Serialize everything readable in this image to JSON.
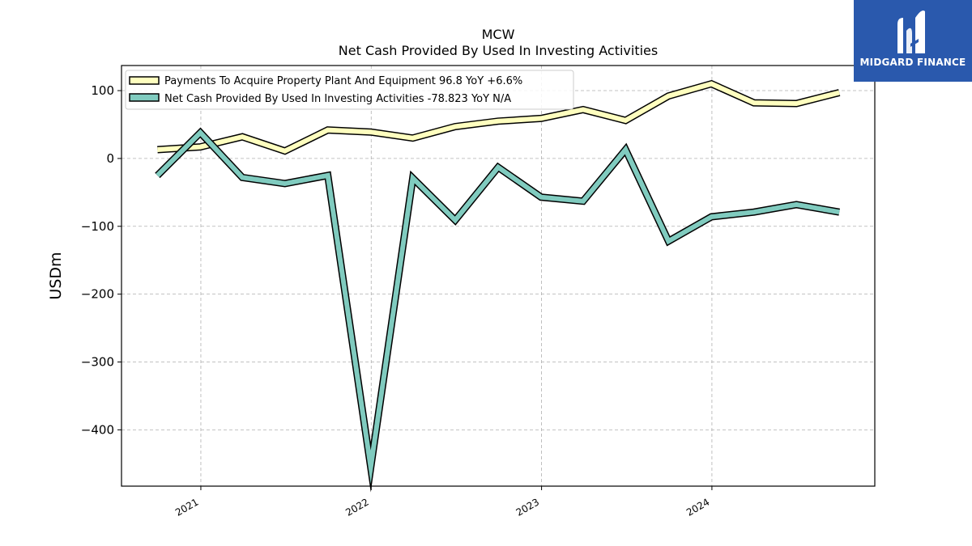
{
  "chart_data": {
    "type": "line",
    "title": "MCW",
    "subtitle": "Net Cash Provided By Used In Investing Activities",
    "ylabel": "USDm",
    "xlabel": "",
    "ylim": [
      -483,
      137
    ],
    "xlim": [
      "2020-07-15",
      "2024-12-15"
    ],
    "yticks": [
      100,
      0,
      -100,
      -200,
      -300,
      -400
    ],
    "ytick_labels": [
      "100",
      "0",
      "−100",
      "−200",
      "−300",
      "−400"
    ],
    "xticks": [
      "2021-01-01",
      "2022-01-01",
      "2023-01-01",
      "2024-01-01"
    ],
    "xtick_labels": [
      "2021",
      "2022",
      "2023",
      "2024"
    ],
    "grid": true,
    "legend_position": "top-left",
    "x": [
      "2020-09-30",
      "2020-12-31",
      "2021-03-31",
      "2021-06-30",
      "2021-09-30",
      "2021-12-31",
      "2022-03-31",
      "2022-06-30",
      "2022-09-30",
      "2022-12-31",
      "2023-03-31",
      "2023-06-30",
      "2023-09-30",
      "2023-12-31",
      "2024-03-31",
      "2024-06-30",
      "2024-09-30"
    ],
    "series": [
      {
        "name": "Payments To Acquire Property Plant And Equipment  96.8 YoY +6.6%",
        "color": "#ffffbf",
        "values": [
          13,
          17,
          32,
          11,
          42,
          39,
          30,
          47,
          55,
          59,
          72,
          56,
          92,
          110,
          82,
          81,
          97
        ]
      },
      {
        "name": "Net Cash Provided By Used In Investing Activities  -78.823 YoY N/A",
        "color": "#80cbbf",
        "values": [
          -25,
          38,
          -28,
          -37,
          -25,
          -455,
          -29,
          -91,
          -13,
          -57,
          -63,
          13,
          -122,
          -86,
          -79,
          -68,
          -79
        ]
      }
    ]
  },
  "logo": {
    "text": "MIDGARD FINANCE",
    "background": "#2a59ad"
  }
}
